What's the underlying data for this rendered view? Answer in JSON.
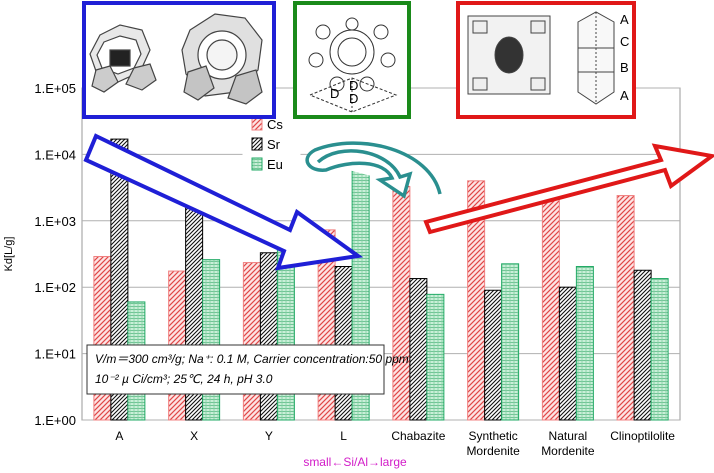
{
  "chart_data": {
    "type": "bar",
    "ylabel": "Kd[L/g]",
    "xlabel": "small←Si/Al→large",
    "yscale": "log",
    "ylim": [
      1,
      100000
    ],
    "yticks": [
      "1.E+00",
      "1.E+01",
      "1.E+02",
      "1.E+03",
      "1.E+04",
      "1.E+05"
    ],
    "grid": true,
    "legend_position": "top-center",
    "categories": [
      {
        "line1": "A",
        "line2": ""
      },
      {
        "line1": "X",
        "line2": ""
      },
      {
        "line1": "Y",
        "line2": ""
      },
      {
        "line1": "L",
        "line2": ""
      },
      {
        "line1": "Chabazite",
        "line2": ""
      },
      {
        "line1": "Synthetic",
        "line2": "Mordenite"
      },
      {
        "line1": "Natural",
        "line2": "Mordenite"
      },
      {
        "line1": "Clinoptilolite",
        "line2": ""
      }
    ],
    "series": [
      {
        "name": "Cs",
        "color": "#f08080",
        "pattern": "hatch-red",
        "values": [
          290,
          175,
          235,
          730,
          4300,
          4000,
          2800,
          2400
        ]
      },
      {
        "name": "Sr",
        "color": "#000000",
        "pattern": "hatch-black",
        "values": [
          17000,
          2100,
          330,
          205,
          135,
          90,
          100,
          180
        ]
      },
      {
        "name": "Eu",
        "color": "#22aa66",
        "pattern": "grid-green",
        "values": [
          60,
          260,
          420,
          8500,
          78,
          225,
          205,
          135
        ]
      }
    ],
    "annotation": {
      "line1": "V/m＝300 cm³/g; Na⁺: 0.1 M, Carrier concentration:50 ppm;",
      "line2": "10⁻² µ Ci/cm³; 25℃, 24 h, pH 3.0"
    }
  },
  "overlays": {
    "frame_colors": [
      "#1f1fd6",
      "#1a8a1a",
      "#e01818"
    ],
    "arrow_colors": [
      "#1f1fd6",
      "#2a8f8f",
      "#e01818"
    ],
    "diagram_labels": [
      "A",
      "C",
      "B",
      "A"
    ],
    "diagram_small_labels": [
      "D",
      "D",
      "D"
    ]
  }
}
